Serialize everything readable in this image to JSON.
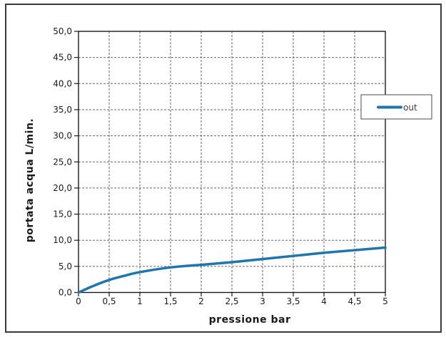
{
  "chart_data": {
    "type": "line",
    "title": "",
    "xlabel": "pressione bar",
    "ylabel": "portata acqua L/min.",
    "xlim": [
      0,
      5
    ],
    "ylim": [
      0,
      50
    ],
    "grid": true,
    "gridline_style": "dashed",
    "x_ticks": [
      0,
      0.5,
      1,
      1.5,
      2,
      2.5,
      3,
      3.5,
      4,
      4.5,
      5
    ],
    "x_tick_labels": [
      "0",
      "0,5",
      "1",
      "1,5",
      "2",
      "2,5",
      "3",
      "3,5",
      "4",
      "4,5",
      "5"
    ],
    "y_ticks": [
      0,
      5,
      10,
      15,
      20,
      25,
      30,
      35,
      40,
      45,
      50
    ],
    "y_tick_labels": [
      "0,0",
      "5,0",
      "10,0",
      "15,0",
      "20,0",
      "25,0",
      "30,0",
      "35,0",
      "40,0",
      "45,0",
      "50,0"
    ],
    "legend_position": "right-overlapping-plot",
    "series": [
      {
        "name": "out",
        "color": "#1f76ad",
        "x": [
          0,
          0.25,
          0.5,
          0.75,
          1,
          1.5,
          2,
          2.5,
          3,
          3.5,
          4,
          4.5,
          5
        ],
        "y": [
          0,
          1.3,
          2.4,
          3.2,
          3.9,
          4.8,
          5.3,
          5.8,
          6.4,
          7.0,
          7.6,
          8.1,
          8.6
        ]
      }
    ]
  },
  "colors": {
    "series_blue": "#1f76ad",
    "gridline": "#666666",
    "axis": "#1a1a1a",
    "outer_border": "#3a3a3a",
    "legend_border": "#4a4a4a",
    "background": "#ffffff"
  }
}
